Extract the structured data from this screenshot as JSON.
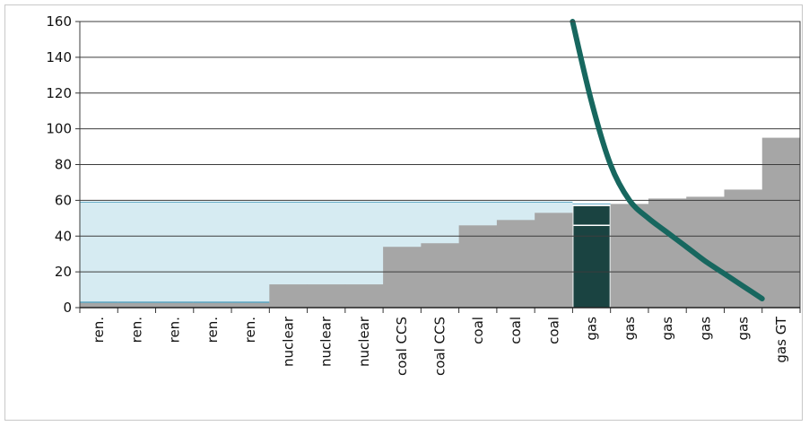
{
  "chart_data": {
    "type": "bar",
    "subtype": "merit-order step chart with demand curve",
    "title": "",
    "xlabel": "",
    "ylabel": "",
    "ylim": [
      0,
      160
    ],
    "yticks": [
      0,
      20,
      40,
      60,
      80,
      100,
      120,
      140,
      160
    ],
    "grid": "horizontal",
    "categories": [
      "ren.",
      "ren.",
      "ren.",
      "ren.",
      "ren.",
      "nuclear",
      "nuclear",
      "nuclear",
      "coal CCS",
      "coal CCS",
      "coal",
      "coal",
      "coal",
      "gas",
      "gas",
      "gas",
      "gas",
      "gas",
      "gas GT"
    ],
    "series": [
      {
        "values": [
          3,
          3,
          3,
          3,
          3,
          13,
          13,
          13,
          34,
          36,
          46,
          49,
          53,
          57,
          58,
          61,
          62,
          66,
          95
        ]
      }
    ],
    "marginal_unit_index": 13,
    "marginal_unit_inner_line": 46,
    "clearing_price": 59,
    "demand_curve": {
      "points": [
        [
          13.0,
          160
        ],
        [
          13.5,
          115
        ],
        [
          14.0,
          80
        ],
        [
          14.5,
          60
        ],
        [
          15.0,
          50
        ],
        [
          15.5,
          42
        ],
        [
          16.0,
          34
        ],
        [
          16.5,
          26
        ],
        [
          17.0,
          19
        ],
        [
          17.5,
          12
        ],
        [
          18.0,
          5
        ]
      ]
    },
    "colors": {
      "bars": "#a6a6a6",
      "marginal_bar": "#1a4341",
      "surplus_area": "#d6ebf2",
      "surplus_border": "#5aa6c2",
      "demand_curve": "#17675f",
      "grid": "#3c3c3c"
    }
  }
}
